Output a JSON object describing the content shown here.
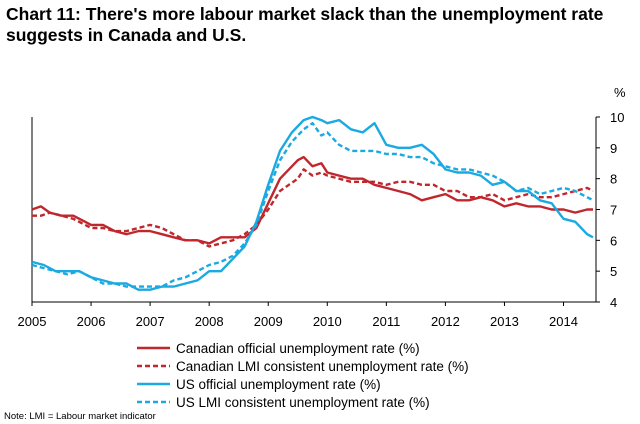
{
  "title": "Chart 11: There's more labour market slack than the unemployment rate suggests in Canada and U.S.",
  "note": "Note: LMI = Labour market indicator",
  "chart_data": {
    "type": "line",
    "title": "Chart 11: There's more labour market slack than the unemployment rate suggests in Canada and U.S.",
    "xlabel": "",
    "ylabel": "%",
    "xlim": [
      2005,
      2014.55
    ],
    "ylim": [
      4,
      10
    ],
    "x_ticks": [
      2005,
      2006,
      2007,
      2008,
      2009,
      2010,
      2011,
      2012,
      2013,
      2014
    ],
    "x_tick_labels": [
      "2005",
      "2006",
      "2007",
      "2008",
      "2009",
      "2010",
      "2011",
      "2012",
      "2013",
      "2014"
    ],
    "y_ticks": [
      4,
      5,
      6,
      7,
      8,
      9,
      10
    ],
    "y_tick_labels": [
      "4",
      "5",
      "6",
      "7",
      "8",
      "9",
      "10"
    ],
    "unit_label": "%",
    "series": [
      {
        "name": "Canadian official unemployment rate (%)",
        "color": "#c0272d",
        "dash": "solid",
        "x": [
          2005.0,
          2005.15,
          2005.3,
          2005.5,
          2005.7,
          2005.9,
          2006.0,
          2006.2,
          2006.4,
          2006.6,
          2006.8,
          2007.0,
          2007.2,
          2007.4,
          2007.6,
          2007.8,
          2008.0,
          2008.2,
          2008.4,
          2008.6,
          2008.8,
          2009.0,
          2009.2,
          2009.35,
          2009.5,
          2009.6,
          2009.75,
          2009.9,
          2010.0,
          2010.2,
          2010.4,
          2010.6,
          2010.8,
          2011.0,
          2011.2,
          2011.4,
          2011.6,
          2011.8,
          2012.0,
          2012.2,
          2012.4,
          2012.6,
          2012.8,
          2013.0,
          2013.2,
          2013.4,
          2013.6,
          2013.8,
          2014.0,
          2014.2,
          2014.4,
          2014.5
        ],
        "values": [
          7.0,
          7.1,
          6.9,
          6.8,
          6.8,
          6.6,
          6.5,
          6.5,
          6.3,
          6.2,
          6.3,
          6.3,
          6.2,
          6.1,
          6.0,
          6.0,
          5.9,
          6.1,
          6.1,
          6.1,
          6.4,
          7.2,
          8.0,
          8.3,
          8.6,
          8.7,
          8.4,
          8.5,
          8.2,
          8.1,
          8.0,
          8.0,
          7.8,
          7.7,
          7.6,
          7.5,
          7.3,
          7.4,
          7.5,
          7.3,
          7.3,
          7.4,
          7.3,
          7.1,
          7.2,
          7.1,
          7.1,
          7.0,
          7.0,
          6.9,
          7.0,
          7.0
        ]
      },
      {
        "name": "Canadian LMI consistent unemployment rate (%)",
        "color": "#c0272d",
        "dash": "dashed",
        "x": [
          2005.0,
          2005.15,
          2005.3,
          2005.5,
          2005.7,
          2005.9,
          2006.0,
          2006.2,
          2006.4,
          2006.6,
          2006.8,
          2007.0,
          2007.2,
          2007.4,
          2007.6,
          2007.8,
          2008.0,
          2008.2,
          2008.4,
          2008.6,
          2008.8,
          2009.0,
          2009.2,
          2009.35,
          2009.5,
          2009.6,
          2009.75,
          2009.9,
          2010.0,
          2010.2,
          2010.4,
          2010.6,
          2010.8,
          2011.0,
          2011.2,
          2011.4,
          2011.6,
          2011.8,
          2012.0,
          2012.2,
          2012.4,
          2012.6,
          2012.8,
          2013.0,
          2013.2,
          2013.4,
          2013.6,
          2013.8,
          2014.0,
          2014.2,
          2014.4,
          2014.5
        ],
        "values": [
          6.8,
          6.8,
          6.9,
          6.8,
          6.7,
          6.5,
          6.4,
          6.4,
          6.3,
          6.3,
          6.4,
          6.5,
          6.4,
          6.2,
          6.0,
          6.0,
          5.8,
          5.9,
          6.0,
          6.2,
          6.5,
          7.0,
          7.6,
          7.8,
          8.0,
          8.3,
          8.1,
          8.2,
          8.1,
          8.0,
          7.9,
          7.9,
          7.9,
          7.8,
          7.9,
          7.9,
          7.8,
          7.8,
          7.6,
          7.6,
          7.4,
          7.4,
          7.5,
          7.3,
          7.4,
          7.5,
          7.4,
          7.4,
          7.5,
          7.6,
          7.7,
          7.6
        ]
      },
      {
        "name": "US official unemployment rate (%)",
        "color": "#1ba9e1",
        "dash": "solid",
        "x": [
          2005.0,
          2005.2,
          2005.4,
          2005.6,
          2005.8,
          2006.0,
          2006.2,
          2006.4,
          2006.6,
          2006.8,
          2007.0,
          2007.2,
          2007.4,
          2007.6,
          2007.8,
          2008.0,
          2008.2,
          2008.4,
          2008.6,
          2008.8,
          2009.0,
          2009.2,
          2009.4,
          2009.6,
          2009.75,
          2009.9,
          2010.0,
          2010.2,
          2010.4,
          2010.6,
          2010.8,
          2011.0,
          2011.2,
          2011.4,
          2011.6,
          2011.8,
          2012.0,
          2012.2,
          2012.4,
          2012.6,
          2012.8,
          2013.0,
          2013.2,
          2013.4,
          2013.6,
          2013.8,
          2014.0,
          2014.2,
          2014.4,
          2014.5
        ],
        "values": [
          5.3,
          5.2,
          5.0,
          5.0,
          5.0,
          4.8,
          4.7,
          4.6,
          4.6,
          4.4,
          4.4,
          4.5,
          4.5,
          4.6,
          4.7,
          5.0,
          5.0,
          5.4,
          5.8,
          6.6,
          7.8,
          8.9,
          9.5,
          9.9,
          10.0,
          9.9,
          9.8,
          9.9,
          9.6,
          9.5,
          9.8,
          9.1,
          9.0,
          9.0,
          9.1,
          8.8,
          8.3,
          8.2,
          8.2,
          8.1,
          7.8,
          7.9,
          7.6,
          7.6,
          7.3,
          7.2,
          6.7,
          6.6,
          6.2,
          6.1
        ]
      },
      {
        "name": "US LMI consistent unemployment rate (%)",
        "color": "#1ba9e1",
        "dash": "dashed",
        "x": [
          2005.0,
          2005.2,
          2005.4,
          2005.6,
          2005.8,
          2006.0,
          2006.2,
          2006.4,
          2006.6,
          2006.8,
          2007.0,
          2007.2,
          2007.4,
          2007.6,
          2007.8,
          2008.0,
          2008.2,
          2008.4,
          2008.6,
          2008.8,
          2009.0,
          2009.2,
          2009.4,
          2009.6,
          2009.75,
          2009.9,
          2010.0,
          2010.2,
          2010.4,
          2010.6,
          2010.8,
          2011.0,
          2011.2,
          2011.4,
          2011.6,
          2011.8,
          2012.0,
          2012.2,
          2012.4,
          2012.6,
          2012.8,
          2013.0,
          2013.2,
          2013.4,
          2013.6,
          2013.8,
          2014.0,
          2014.2,
          2014.4,
          2014.5
        ],
        "values": [
          5.2,
          5.1,
          5.0,
          4.9,
          5.0,
          4.8,
          4.6,
          4.6,
          4.5,
          4.5,
          4.5,
          4.5,
          4.7,
          4.8,
          5.0,
          5.2,
          5.3,
          5.5,
          5.9,
          6.5,
          7.6,
          8.6,
          9.2,
          9.6,
          9.8,
          9.4,
          9.5,
          9.1,
          8.9,
          8.9,
          8.9,
          8.8,
          8.8,
          8.7,
          8.7,
          8.5,
          8.4,
          8.3,
          8.3,
          8.2,
          8.1,
          7.9,
          7.6,
          7.7,
          7.5,
          7.6,
          7.7,
          7.6,
          7.4,
          7.3
        ]
      }
    ],
    "legend": {
      "placement": "bottom-center",
      "entries": [
        "Canadian official unemployment rate (%)",
        "Canadian LMI consistent unemployment rate (%)",
        "US official unemployment rate (%)",
        "US LMI consistent unemployment rate (%)"
      ]
    },
    "grid": false
  }
}
